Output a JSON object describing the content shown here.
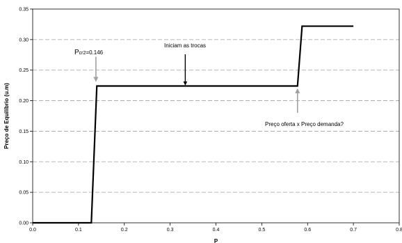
{
  "chart_data": {
    "type": "line",
    "title": "",
    "xlabel": "P",
    "ylabel": "Preço de Equilíbrio (u.m)",
    "xlim": [
      0,
      0.8
    ],
    "ylim": [
      0,
      0.35
    ],
    "x_ticks": [
      "0.0",
      "0.1",
      "0.2",
      "0.3",
      "0.4",
      "0.5",
      "0.6",
      "0.7",
      "0.8"
    ],
    "y_ticks": [
      "0.00",
      "0.05",
      "0.10",
      "0.15",
      "0.20",
      "0.25",
      "0.30",
      "0.35"
    ],
    "grid": {
      "horizontal": true,
      "style": "dashed",
      "color": "#a0a0a0"
    },
    "series": [
      {
        "color": "#000000",
        "x": [
          0.0,
          0.128,
          0.14,
          0.578,
          0.588,
          0.7
        ],
        "y": [
          0.0,
          0.0,
          0.224,
          0.224,
          0.322,
          0.322
        ]
      }
    ],
    "annotations": [
      {
        "text_main": "P",
        "text_sub": "cr2",
        "text_rest": "=0.146",
        "arrow_x": 0.138,
        "arrow_from_y": 0.272,
        "arrow_to_y": 0.232,
        "arrow_color": "#a0a0a0"
      },
      {
        "text": "Iniciam as trocas",
        "arrow_x": 0.333,
        "arrow_from_y": 0.276,
        "arrow_to_y": 0.226,
        "arrow_color": "#000000"
      },
      {
        "text": "Preço oferta x Preço demanda?",
        "arrow_x": 0.578,
        "arrow_from_y": 0.18,
        "arrow_to_y": 0.219,
        "arrow_color": "#a0a0a0"
      }
    ]
  }
}
